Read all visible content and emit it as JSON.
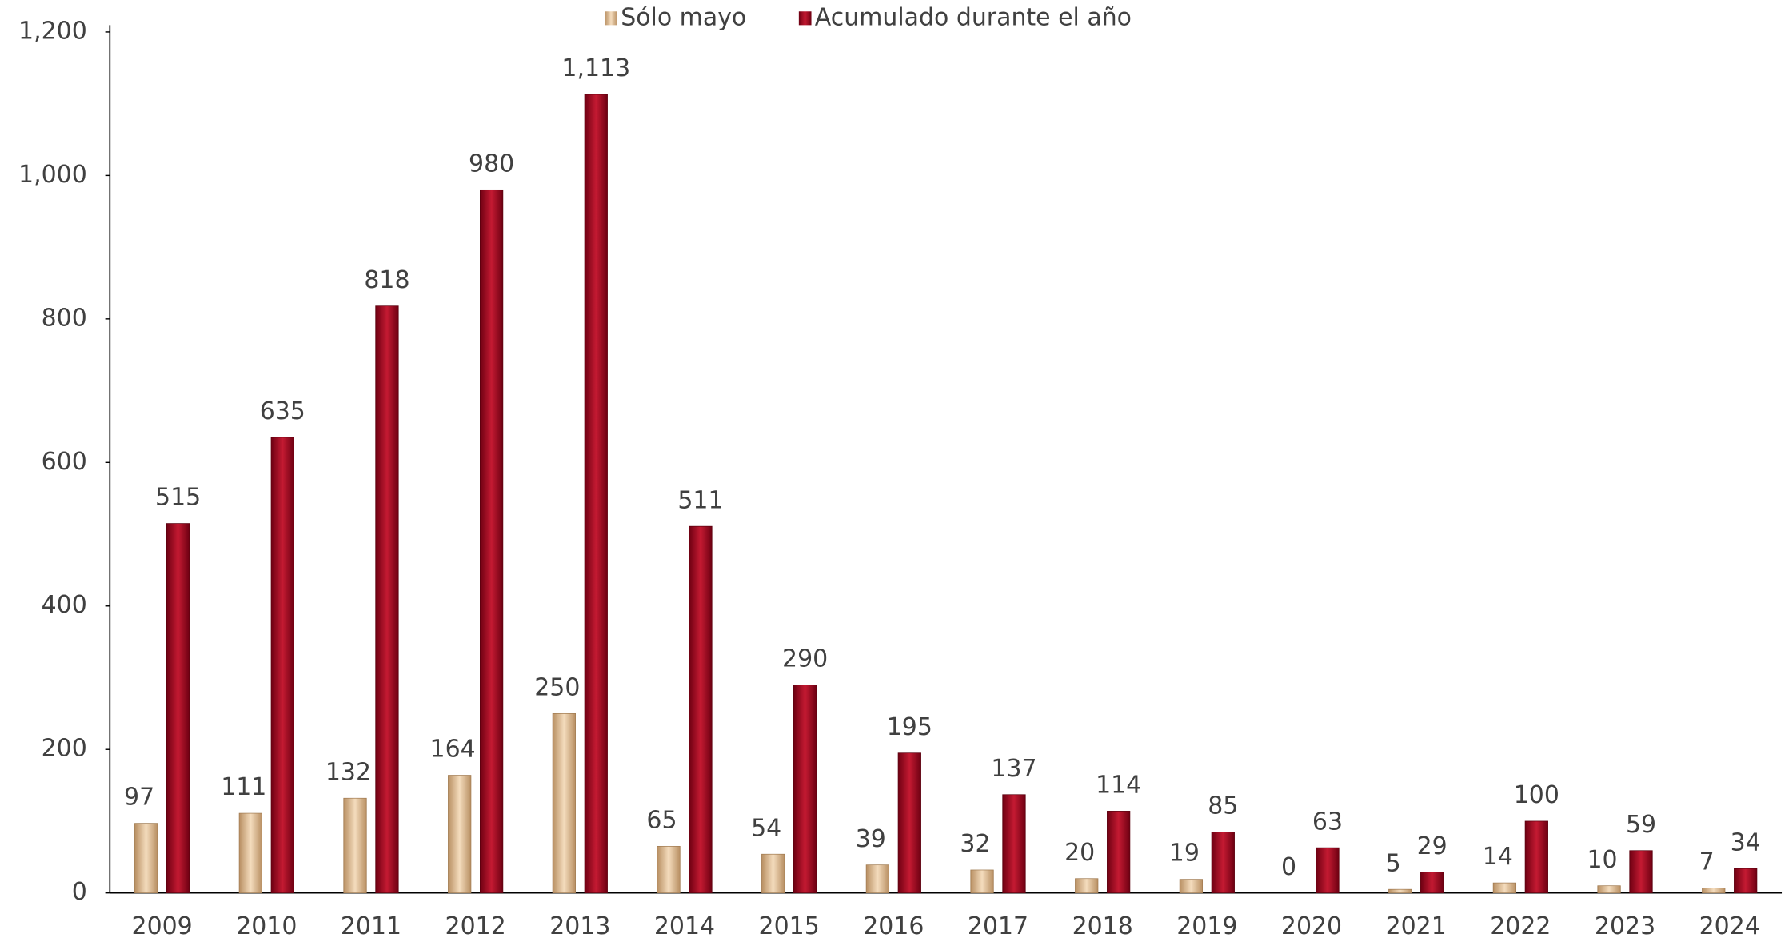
{
  "chart_data": {
    "type": "bar",
    "categories": [
      "2009",
      "2010",
      "2011",
      "2012",
      "2013",
      "2014",
      "2015",
      "2016",
      "2017",
      "2018",
      "2019",
      "2020",
      "2021",
      "2022",
      "2023",
      "2024"
    ],
    "series": [
      {
        "name": "Sólo mayo",
        "color": "#d9b58e",
        "values": [
          97,
          111,
          132,
          164,
          250,
          65,
          54,
          39,
          32,
          20,
          19,
          0,
          5,
          14,
          10,
          7
        ]
      },
      {
        "name": "Acumulado durante el año",
        "color": "#a50f25",
        "values": [
          515,
          635,
          818,
          980,
          1113,
          511,
          290,
          195,
          137,
          114,
          85,
          63,
          29,
          100,
          59,
          34
        ],
        "value_labels": [
          "515",
          "635",
          "818",
          "980",
          "1,113",
          "511",
          "290",
          "195",
          "137",
          "114",
          "85",
          "63",
          "29",
          "100",
          "59",
          "34"
        ]
      }
    ],
    "ylim": [
      0,
      1200
    ],
    "yticks": [
      0,
      200,
      400,
      600,
      800,
      {
        "value": 1000,
        "label": "1,000"
      },
      {
        "value": 1200,
        "label": "1,200"
      }
    ],
    "legend": "top"
  }
}
